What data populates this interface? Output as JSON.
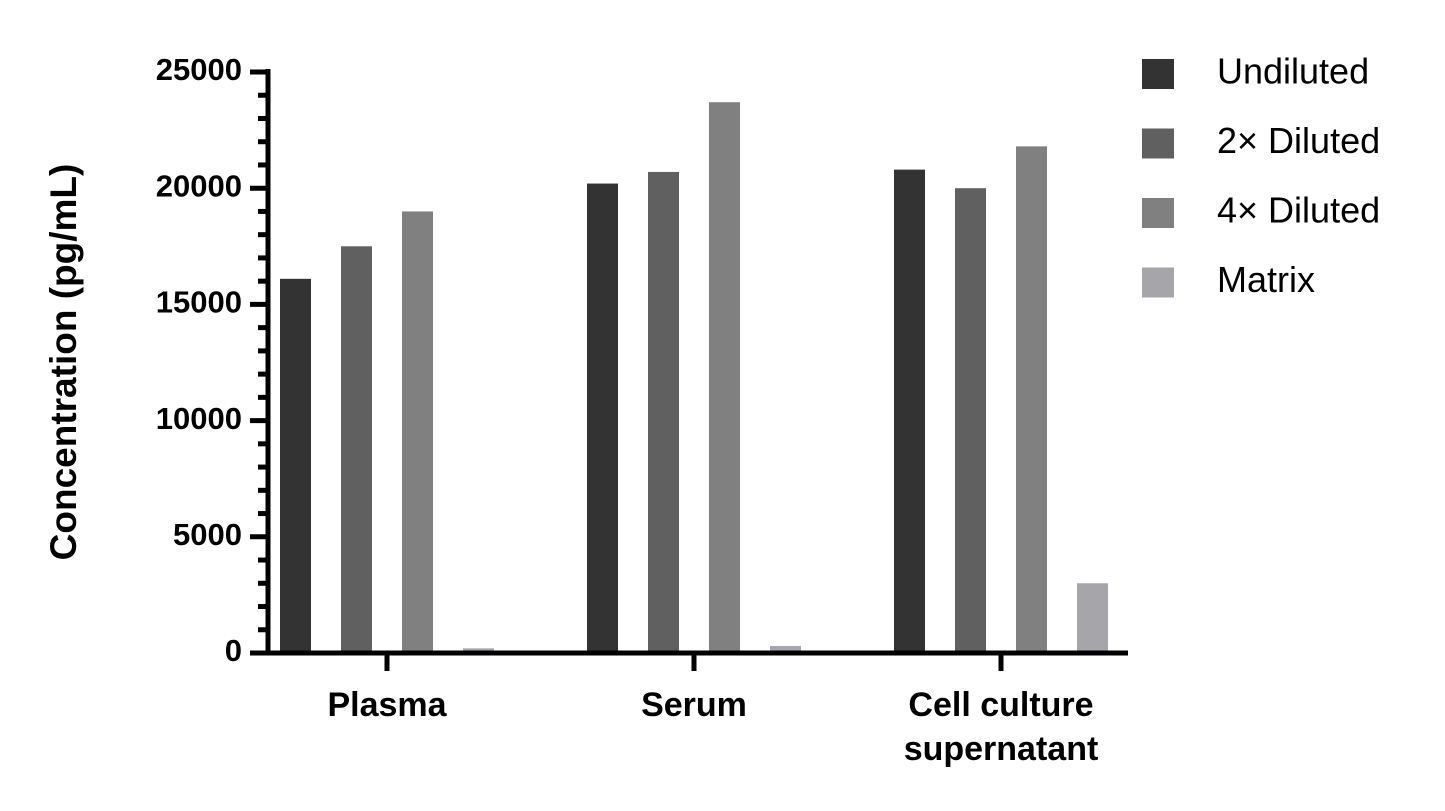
{
  "chart_data": {
    "type": "bar",
    "y_label": "Concentration (pg/mL)",
    "categories": [
      "Plasma",
      "Serum",
      "Cell culture\nsupernatant"
    ],
    "series": [
      {
        "name": "Undiluted",
        "color": "#333333",
        "values": [
          16100,
          20200,
          20800
        ]
      },
      {
        "name": "2× Diluted",
        "color": "#606060",
        "values": [
          17500,
          20700,
          20000
        ]
      },
      {
        "name": "4× Diluted",
        "color": "#808080",
        "values": [
          19000,
          23700,
          21800
        ]
      },
      {
        "name": "Matrix",
        "color": "#a6a6aa",
        "values": [
          200,
          300,
          3000
        ]
      }
    ],
    "ylim": [
      0,
      25000
    ],
    "yticks": [
      0,
      5000,
      10000,
      15000,
      20000,
      25000
    ],
    "minor_yticks": [
      1000,
      2000,
      3000,
      4000,
      6000,
      7000,
      8000,
      9000,
      11000,
      12000,
      13000,
      14000,
      16000,
      17000,
      18000,
      19000,
      21000,
      22000,
      23000,
      24000
    ],
    "grid": false,
    "legend": "right"
  }
}
